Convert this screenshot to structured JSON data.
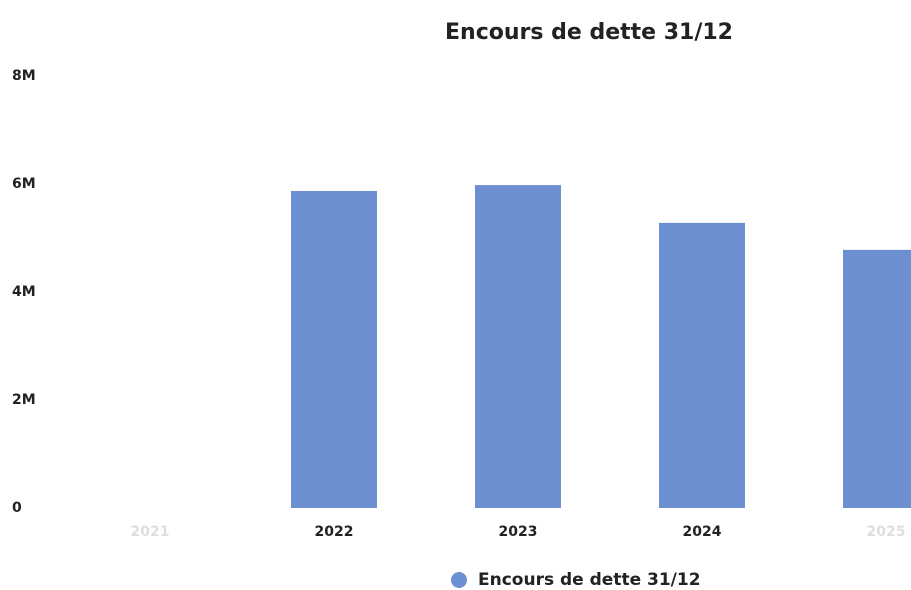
{
  "chart_data": {
    "type": "bar",
    "title": "Encours de dette 31/12",
    "categories": [
      "2021",
      "2022",
      "2023",
      "2024",
      "2025"
    ],
    "series": [
      {
        "name": "Encours de dette 31/12",
        "color": "#6b8fd0",
        "values": [
          null,
          5870000,
          5980000,
          5280000,
          4780000
        ]
      }
    ],
    "ylim": [
      0,
      8000000
    ],
    "yticks": [
      0,
      {
        "value": 2000000,
        "label": "2M"
      },
      {
        "value": 4000000,
        "label": "4M"
      },
      {
        "value": 6000000,
        "label": "6M"
      },
      {
        "value": 8000000,
        "label": "8M"
      }
    ],
    "grid": false,
    "legend": "bottom"
  }
}
